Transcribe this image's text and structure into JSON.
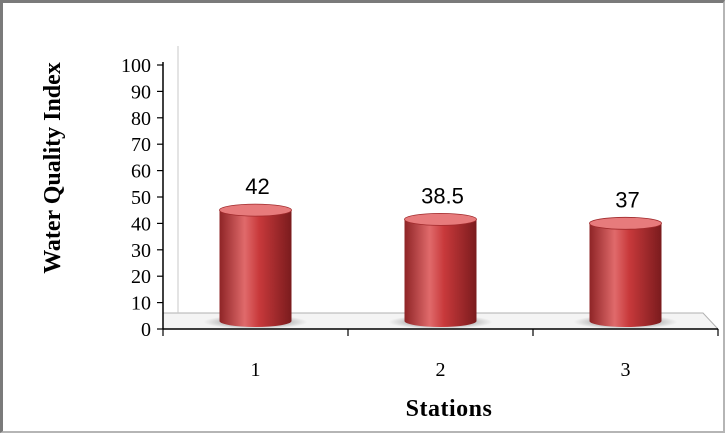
{
  "chart_data": {
    "type": "bar",
    "categories": [
      "1",
      "2",
      "3"
    ],
    "values": [
      42,
      38.5,
      37
    ],
    "data_labels": [
      "42",
      "38.5",
      "37"
    ],
    "title": "",
    "xlabel": "Stations",
    "ylabel": "Water Quality Index",
    "ylim": [
      0,
      100
    ],
    "yticks": [
      0,
      10,
      20,
      30,
      40,
      50,
      60,
      70,
      80,
      90,
      100
    ],
    "grid": false,
    "legend": "none",
    "bar_style": "3d-cylinder",
    "colors": {
      "bar": "#c0393b",
      "bar_dark": "#7d1d1f",
      "bar_light": "#e77b7c"
    }
  }
}
